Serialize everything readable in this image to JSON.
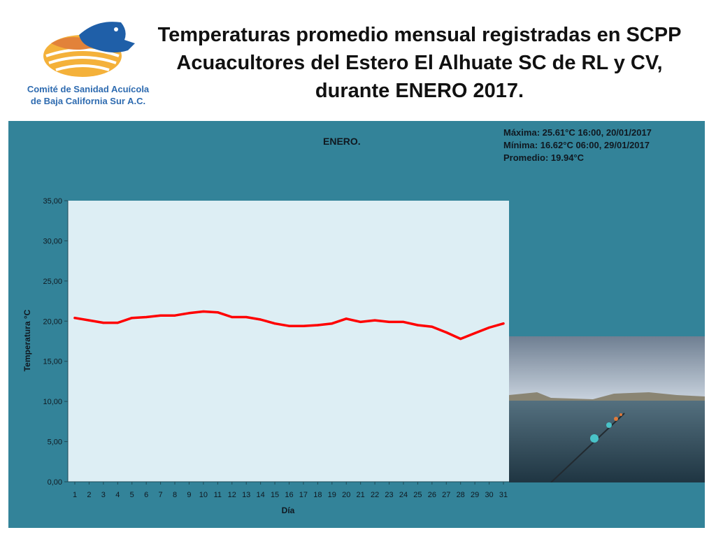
{
  "title_lines": [
    "Temperaturas promedio mensual registradas en SCPP",
    "Acuacultores del Estero El Alhuate SC de RL y CV,",
    "durante ENERO 2017."
  ],
  "logo": {
    "line1": "Comité de Sanidad Acuícola",
    "line2": "de Baja California Sur A.C.",
    "icon": "fish-shell-logo",
    "colors": {
      "fish": "#1f5fa8",
      "shell": "#f0a830",
      "accent": "#e2823a"
    }
  },
  "stats": {
    "max": "Máxima: 25.61°C  16:00, 20/01/2017",
    "min": "Mínima:  16.62°C 06:00, 29/01/2017",
    "avg": "Promedio: 19.94°C"
  },
  "photo": {
    "icon": "estuary-photo"
  },
  "colors": {
    "panel": "#338399",
    "plot_bg": "#ddeef4",
    "line": "#ff0000"
  },
  "chart_data": {
    "type": "line",
    "title": "ENERO.",
    "xlabel": "Día",
    "ylabel": "Temperatura °C",
    "categories": [
      "1",
      "2",
      "3",
      "4",
      "5",
      "6",
      "7",
      "8",
      "9",
      "10",
      "11",
      "12",
      "13",
      "14",
      "15",
      "16",
      "17",
      "18",
      "19",
      "20",
      "21",
      "22",
      "23",
      "24",
      "25",
      "26",
      "27",
      "28",
      "29",
      "30",
      "31"
    ],
    "series": [
      {
        "values": [
          20.4,
          20.1,
          19.8,
          19.8,
          20.4,
          20.5,
          20.7,
          20.7,
          21.0,
          21.2,
          21.1,
          20.5,
          20.5,
          20.2,
          19.7,
          19.4,
          19.4,
          19.5,
          19.7,
          20.3,
          19.9,
          20.1,
          19.9,
          19.9,
          19.5,
          19.3,
          18.6,
          17.8,
          18.5,
          19.2,
          19.7
        ]
      }
    ],
    "ylim": [
      0,
      35
    ],
    "yticks": [
      "0,00",
      "5,00",
      "10,00",
      "15,00",
      "20,00",
      "25,00",
      "30,00",
      "35,00"
    ],
    "ytick_values": [
      0,
      5,
      10,
      15,
      20,
      25,
      30,
      35
    ],
    "grid": false,
    "legend": "none"
  }
}
